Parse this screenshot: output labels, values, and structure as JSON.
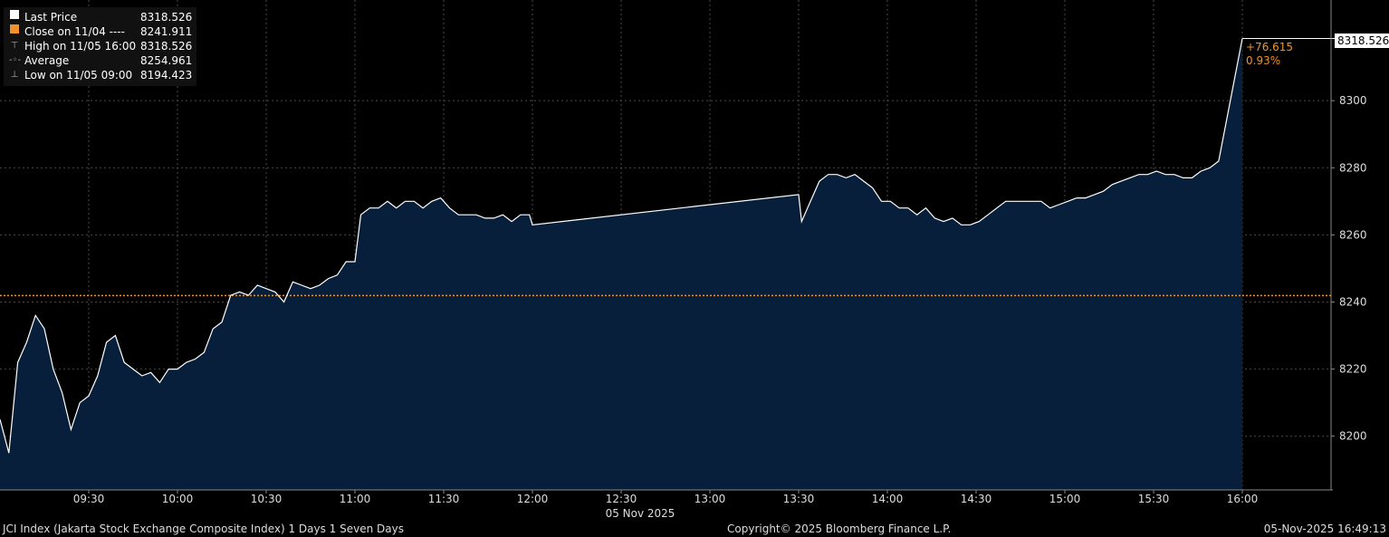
{
  "legend": {
    "last_price_label": "Last Price",
    "last_price_value": "8318.526",
    "close_label": "Close on 11/04 ----",
    "close_value": "8241.911",
    "high_label": "High on 11/05 16:00",
    "high_value": "8318.526",
    "average_label": "Average",
    "average_value": "8254.961",
    "low_label": "Low on 11/05 09:00",
    "low_value": "8194.423"
  },
  "annotations": {
    "change": "+76.615",
    "change_pct": "0.93%",
    "last_price_tag": "8318.526"
  },
  "footer": {
    "description": "JCI Index (Jakarta Stock Exchange Composite Index) 1 Days 1 Seven Days",
    "copyright": "Copyright© 2025 Bloomberg Finance L.P.",
    "timestamp": "05-Nov-2025 16:49:13"
  },
  "colors": {
    "background": "#000000",
    "area_fill": "#071f3a",
    "line": "#ffffff",
    "close_line": "#f0922a",
    "grid": "#555555"
  },
  "chart_data": {
    "type": "area",
    "date_label": "05 Nov 2025",
    "x_ticks": [
      "09:30",
      "10:00",
      "10:30",
      "11:00",
      "11:30",
      "12:00",
      "12:30",
      "13:00",
      "13:30",
      "14:00",
      "14:30",
      "15:00",
      "15:30",
      "16:00"
    ],
    "y_ticks": [
      8200,
      8220,
      8240,
      8260,
      8280,
      8300
    ],
    "ylim": [
      8184,
      8330
    ],
    "xlim": [
      "09:00",
      "16:30"
    ],
    "grid": true,
    "close_reference": 8241.911,
    "series": [
      {
        "name": "Last Price",
        "points": [
          [
            "09:00",
            8205
          ],
          [
            "09:03",
            8195
          ],
          [
            "09:06",
            8222
          ],
          [
            "09:09",
            8228
          ],
          [
            "09:12",
            8236
          ],
          [
            "09:15",
            8232
          ],
          [
            "09:18",
            8220
          ],
          [
            "09:21",
            8213
          ],
          [
            "09:24",
            8202
          ],
          [
            "09:27",
            8210
          ],
          [
            "09:30",
            8212
          ],
          [
            "09:33",
            8218
          ],
          [
            "09:36",
            8228
          ],
          [
            "09:39",
            8230
          ],
          [
            "09:42",
            8222
          ],
          [
            "09:45",
            8220
          ],
          [
            "09:48",
            8218
          ],
          [
            "09:51",
            8219
          ],
          [
            "09:54",
            8216
          ],
          [
            "09:57",
            8220
          ],
          [
            "10:00",
            8220
          ],
          [
            "10:03",
            8222
          ],
          [
            "10:06",
            8223
          ],
          [
            "10:09",
            8225
          ],
          [
            "10:12",
            8232
          ],
          [
            "10:15",
            8234
          ],
          [
            "10:18",
            8242
          ],
          [
            "10:21",
            8243
          ],
          [
            "10:24",
            8242
          ],
          [
            "10:27",
            8245
          ],
          [
            "10:30",
            8244
          ],
          [
            "10:33",
            8243
          ],
          [
            "10:36",
            8240
          ],
          [
            "10:39",
            8246
          ],
          [
            "10:42",
            8245
          ],
          [
            "10:45",
            8244
          ],
          [
            "10:48",
            8245
          ],
          [
            "10:51",
            8247
          ],
          [
            "10:54",
            8248
          ],
          [
            "10:57",
            8252
          ],
          [
            "11:00",
            8252
          ],
          [
            "11:02",
            8266
          ],
          [
            "11:05",
            8268
          ],
          [
            "11:08",
            8268
          ],
          [
            "11:11",
            8270
          ],
          [
            "11:14",
            8268
          ],
          [
            "11:17",
            8270
          ],
          [
            "11:20",
            8270
          ],
          [
            "11:23",
            8268
          ],
          [
            "11:26",
            8270
          ],
          [
            "11:29",
            8271
          ],
          [
            "11:32",
            8268
          ],
          [
            "11:35",
            8266
          ],
          [
            "11:38",
            8266
          ],
          [
            "11:41",
            8266
          ],
          [
            "11:44",
            8265
          ],
          [
            "11:47",
            8265
          ],
          [
            "11:50",
            8266
          ],
          [
            "11:53",
            8264
          ],
          [
            "11:56",
            8266
          ],
          [
            "11:59",
            8266
          ],
          [
            "12:00",
            8263
          ],
          [
            "13:30",
            8272
          ],
          [
            "13:31",
            8264
          ],
          [
            "13:34",
            8270
          ],
          [
            "13:37",
            8276
          ],
          [
            "13:40",
            8278
          ],
          [
            "13:43",
            8278
          ],
          [
            "13:46",
            8277
          ],
          [
            "13:49",
            8278
          ],
          [
            "13:52",
            8276
          ],
          [
            "13:55",
            8274
          ],
          [
            "13:58",
            8270
          ],
          [
            "14:01",
            8270
          ],
          [
            "14:04",
            8268
          ],
          [
            "14:07",
            8268
          ],
          [
            "14:10",
            8266
          ],
          [
            "14:13",
            8268
          ],
          [
            "14:16",
            8265
          ],
          [
            "14:19",
            8264
          ],
          [
            "14:22",
            8265
          ],
          [
            "14:25",
            8263
          ],
          [
            "14:28",
            8263
          ],
          [
            "14:31",
            8264
          ],
          [
            "14:34",
            8266
          ],
          [
            "14:37",
            8268
          ],
          [
            "14:40",
            8270
          ],
          [
            "14:43",
            8270
          ],
          [
            "14:46",
            8270
          ],
          [
            "14:49",
            8270
          ],
          [
            "14:52",
            8270
          ],
          [
            "14:55",
            8268
          ],
          [
            "14:58",
            8269
          ],
          [
            "15:01",
            8270
          ],
          [
            "15:04",
            8271
          ],
          [
            "15:07",
            8271
          ],
          [
            "15:10",
            8272
          ],
          [
            "15:13",
            8273
          ],
          [
            "15:16",
            8275
          ],
          [
            "15:19",
            8276
          ],
          [
            "15:22",
            8277
          ],
          [
            "15:25",
            8278
          ],
          [
            "15:28",
            8278
          ],
          [
            "15:31",
            8279
          ],
          [
            "15:34",
            8278
          ],
          [
            "15:37",
            8278
          ],
          [
            "15:40",
            8277
          ],
          [
            "15:43",
            8277
          ],
          [
            "15:46",
            8279
          ],
          [
            "15:49",
            8280
          ],
          [
            "15:52",
            8282
          ],
          [
            "16:00",
            8318.526
          ]
        ]
      }
    ]
  }
}
